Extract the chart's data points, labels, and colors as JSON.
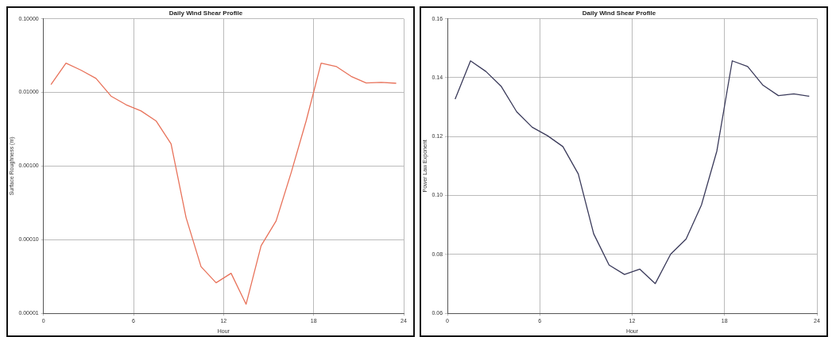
{
  "chart_data": [
    {
      "type": "line",
      "title": "Daily Wind Shear Profile",
      "xlabel": "Hour",
      "ylabel": "Surface Roughness (m)",
      "log": "y",
      "grid": true,
      "legend": false,
      "marker": "none",
      "line_style": "solid",
      "x": [
        0.5,
        1.5,
        2.5,
        3.5,
        4.5,
        5.5,
        6.5,
        7.5,
        8.5,
        9.5,
        10.5,
        11.5,
        12.5,
        13.5,
        14.5,
        15.5,
        16.5,
        17.5,
        18.5,
        19.5,
        20.5,
        21.5,
        22.5,
        23.5
      ],
      "series": [
        {
          "color": "#e8725a",
          "values": [
            0.0128,
            0.0249,
            0.02,
            0.0155,
            0.0089,
            0.0068,
            0.0056,
            0.0041,
            0.002,
            0.0002,
            4.3e-05,
            2.6e-05,
            3.5e-05,
            1.33e-05,
            8.3e-05,
            0.00018,
            0.00081,
            0.0041,
            0.0249,
            0.0225,
            0.0165,
            0.0134,
            0.0137,
            0.0133
          ]
        }
      ],
      "xlim": [
        0,
        24
      ],
      "xticks": [
        0,
        6,
        12,
        18,
        24
      ],
      "ylim": [
        1e-05,
        0.1
      ],
      "yticks": [
        {
          "value": 1e-05,
          "label": "0.00001"
        },
        {
          "value": 0.0001,
          "label": "0.00010"
        },
        {
          "value": 0.001,
          "label": "0.00100"
        },
        {
          "value": 0.01,
          "label": "0.01000"
        },
        {
          "value": 0.1,
          "label": "0.10000"
        }
      ]
    },
    {
      "type": "line",
      "title": "Daily Wind Shear Profile",
      "xlabel": "Hour",
      "ylabel": "Power Law Exponent",
      "grid": true,
      "legend": false,
      "marker": "none",
      "line_style": "solid",
      "x": [
        0.5,
        1.5,
        2.5,
        3.5,
        4.5,
        5.5,
        6.5,
        7.5,
        8.5,
        9.5,
        10.5,
        11.5,
        12.5,
        13.5,
        14.5,
        15.5,
        16.5,
        17.5,
        18.5,
        19.5,
        20.5,
        21.5,
        22.5,
        23.5
      ],
      "series": [
        {
          "color": "#3a3a5a",
          "values": [
            0.1327,
            0.1457,
            0.1421,
            0.137,
            0.1284,
            0.1232,
            0.1203,
            0.1166,
            0.1073,
            0.087,
            0.0764,
            0.0732,
            0.075,
            0.0701,
            0.0801,
            0.0852,
            0.0968,
            0.1151,
            0.1457,
            0.1438,
            0.1374,
            0.1339,
            0.1345,
            0.1337
          ]
        }
      ],
      "xlim": [
        0,
        24
      ],
      "xticks": [
        0,
        6,
        12,
        18,
        24
      ],
      "ylim": [
        0.06,
        0.16
      ],
      "yticks": [
        {
          "value": 0.06,
          "label": "0.06"
        },
        {
          "value": 0.08,
          "label": "0.08"
        },
        {
          "value": 0.1,
          "label": "0.10"
        },
        {
          "value": 0.12,
          "label": "0.12"
        },
        {
          "value": 0.14,
          "label": "0.14"
        },
        {
          "value": 0.16,
          "label": "0.16"
        }
      ]
    }
  ]
}
